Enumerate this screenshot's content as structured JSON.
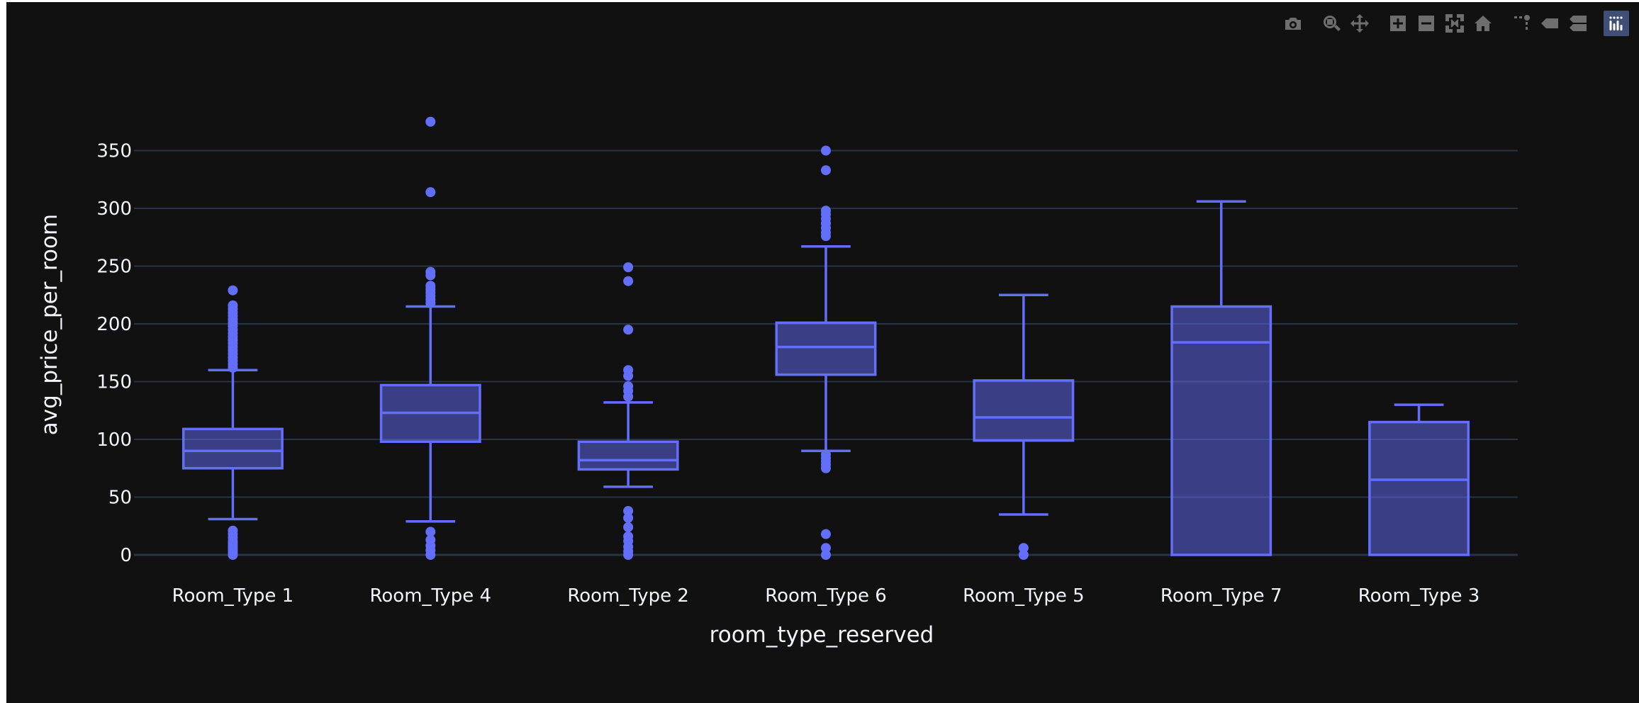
{
  "toolbar": {
    "buttons": [
      {
        "name": "camera-icon",
        "title": "Download plot as a png"
      },
      {
        "name": "zoom-icon",
        "title": "Zoom"
      },
      {
        "name": "pan-icon",
        "title": "Pan"
      },
      {
        "name": "zoom-in-icon",
        "title": "Zoom in"
      },
      {
        "name": "zoom-out-icon",
        "title": "Zoom out"
      },
      {
        "name": "autoscale-icon",
        "title": "Autoscale"
      },
      {
        "name": "home-icon",
        "title": "Reset axes"
      },
      {
        "name": "spikelines-icon",
        "title": "Toggle Spike Lines"
      },
      {
        "name": "hover-closest-icon",
        "title": "Show closest data on hover"
      },
      {
        "name": "hover-compare-icon",
        "title": "Compare data on hover"
      },
      {
        "name": "plotly-logo-icon",
        "title": "Produced with Plotly"
      }
    ]
  },
  "colors": {
    "background": "#111111",
    "trace": "#636efa",
    "box_fill": "rgba(99,110,250,0.5)",
    "grid": "#283442",
    "zeroline": "#283442",
    "text": "#f2f5fa"
  },
  "chart_data": {
    "type": "box",
    "xlabel": "room_type_reserved",
    "ylabel": "avg_price_per_room",
    "ylim": [
      -5,
      395
    ],
    "yticks": [
      0,
      50,
      100,
      150,
      200,
      250,
      300,
      350
    ],
    "grid": true,
    "legend": "none",
    "categories": [
      "Room_Type 1",
      "Room_Type 4",
      "Room_Type 2",
      "Room_Type 6",
      "Room_Type 5",
      "Room_Type 7",
      "Room_Type 3"
    ],
    "boxes": [
      {
        "category": "Room_Type 1",
        "lower_fence": 31,
        "q1": 75,
        "median": 90,
        "q3": 109,
        "upper_fence": 160,
        "outliers": [
          0,
          2,
          4,
          6,
          8,
          10,
          12,
          15,
          18,
          21,
          162,
          165,
          168,
          171,
          174,
          177,
          180,
          183,
          186,
          189,
          192,
          195,
          198,
          201,
          204,
          207,
          210,
          213,
          216,
          229
        ]
      },
      {
        "category": "Room_Type 4",
        "lower_fence": 29,
        "q1": 98,
        "median": 123,
        "q3": 147,
        "upper_fence": 215,
        "outliers": [
          0,
          4,
          8,
          13,
          20,
          218,
          221,
          224,
          227,
          230,
          233,
          242,
          245,
          314,
          375
        ]
      },
      {
        "category": "Room_Type 2",
        "lower_fence": 59,
        "q1": 74,
        "median": 82,
        "q3": 98,
        "upper_fence": 132,
        "outliers": [
          0,
          3,
          7,
          12,
          16,
          24,
          32,
          38,
          137,
          142,
          146,
          155,
          160,
          195,
          237,
          249
        ]
      },
      {
        "category": "Room_Type 6",
        "lower_fence": 90,
        "q1": 156,
        "median": 180,
        "q3": 201,
        "upper_fence": 267,
        "outliers": [
          0,
          6,
          18,
          75,
          78,
          81,
          84,
          87,
          276,
          279,
          283,
          287,
          291,
          295,
          298,
          333,
          350
        ]
      },
      {
        "category": "Room_Type 5",
        "lower_fence": 35,
        "q1": 99,
        "median": 119,
        "q3": 151,
        "upper_fence": 225,
        "outliers": [
          0,
          6
        ]
      },
      {
        "category": "Room_Type 7",
        "lower_fence": 0,
        "q1": 0,
        "median": 184,
        "q3": 215,
        "upper_fence": 306,
        "outliers": []
      },
      {
        "category": "Room_Type 3",
        "lower_fence": 0,
        "q1": 0,
        "median": 65,
        "q3": 115,
        "upper_fence": 130,
        "outliers": []
      }
    ]
  }
}
